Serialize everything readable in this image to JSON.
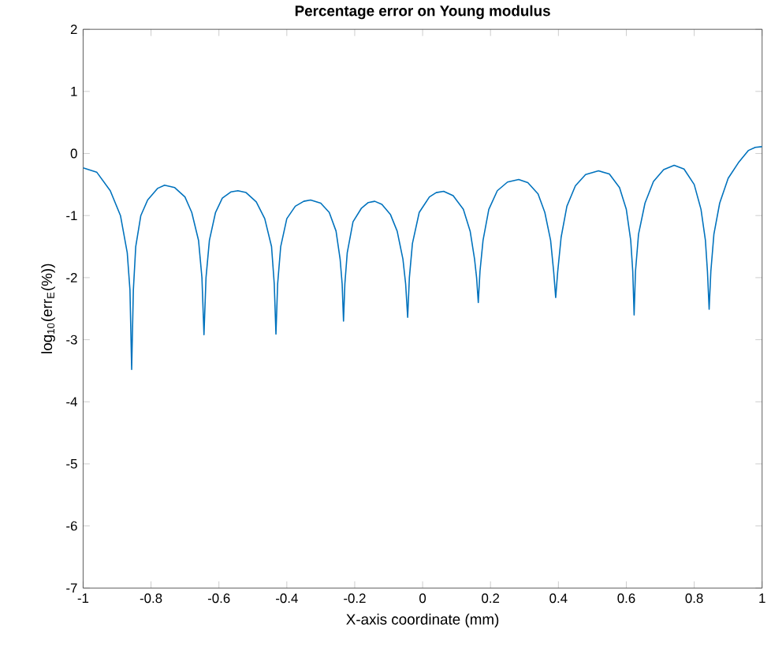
{
  "chart_data": {
    "type": "line",
    "title": "**Percentage error on Young modulus**",
    "xlabel": "X-axis coordinate (mm)",
    "ylabel": "log$_{10}$(err$_{E}$(%))",
    "xlim": [
      -1,
      1
    ],
    "ylim": [
      -7,
      2
    ],
    "xticks": [
      -1,
      -0.8,
      -0.6,
      -0.4,
      -0.2,
      0,
      0.2,
      0.4,
      0.6,
      0.8,
      1
    ],
    "yticks": [
      -7,
      -6,
      -5,
      -4,
      -3,
      -2,
      -1,
      0,
      1,
      2
    ],
    "series": [
      {
        "color": "#0072bd",
        "x": [
          -1,
          -0.96,
          -0.92,
          -0.89,
          -0.87,
          -0.862,
          -0.857,
          -0.852,
          -0.845,
          -0.83,
          -0.81,
          -0.78,
          -0.76,
          -0.73,
          -0.7,
          -0.68,
          -0.66,
          -0.65,
          -0.644,
          -0.638,
          -0.628,
          -0.61,
          -0.59,
          -0.565,
          -0.544,
          -0.52,
          -0.49,
          -0.465,
          -0.445,
          -0.437,
          -0.432,
          -0.427,
          -0.418,
          -0.4,
          -0.375,
          -0.35,
          -0.33,
          -0.3,
          -0.275,
          -0.255,
          -0.243,
          -0.237,
          -0.233,
          -0.229,
          -0.222,
          -0.205,
          -0.18,
          -0.16,
          -0.141,
          -0.12,
          -0.095,
          -0.075,
          -0.058,
          -0.05,
          -0.044,
          -0.039,
          -0.03,
          -0.01,
          0.02,
          0.04,
          0.062,
          0.09,
          0.12,
          0.14,
          0.153,
          0.159,
          0.164,
          0.169,
          0.178,
          0.195,
          0.22,
          0.25,
          0.283,
          0.31,
          0.34,
          0.36,
          0.377,
          0.386,
          0.392,
          0.398,
          0.408,
          0.425,
          0.45,
          0.48,
          0.518,
          0.55,
          0.58,
          0.6,
          0.613,
          0.619,
          0.623,
          0.627,
          0.636,
          0.655,
          0.68,
          0.71,
          0.741,
          0.77,
          0.8,
          0.82,
          0.833,
          0.839,
          0.844,
          0.849,
          0.858,
          0.875,
          0.9,
          0.93,
          0.96,
          0.98,
          1.0
        ],
        "values": [
          -0.23,
          -0.3,
          -0.6,
          -1.0,
          -1.6,
          -2.2,
          -3.48,
          -2.2,
          -1.5,
          -1.0,
          -0.75,
          -0.56,
          -0.51,
          -0.55,
          -0.7,
          -0.95,
          -1.4,
          -2.0,
          -2.92,
          -2.0,
          -1.4,
          -0.95,
          -0.72,
          -0.62,
          -0.6,
          -0.63,
          -0.78,
          -1.05,
          -1.5,
          -2.1,
          -2.91,
          -2.1,
          -1.5,
          -1.05,
          -0.85,
          -0.77,
          -0.75,
          -0.8,
          -0.95,
          -1.25,
          -1.7,
          -2.1,
          -2.7,
          -2.1,
          -1.6,
          -1.1,
          -0.88,
          -0.79,
          -0.77,
          -0.82,
          -0.98,
          -1.25,
          -1.7,
          -2.1,
          -2.64,
          -2.0,
          -1.45,
          -0.95,
          -0.7,
          -0.63,
          -0.61,
          -0.68,
          -0.9,
          -1.25,
          -1.7,
          -2.0,
          -2.4,
          -1.9,
          -1.4,
          -0.9,
          -0.6,
          -0.46,
          -0.42,
          -0.47,
          -0.65,
          -0.95,
          -1.4,
          -1.9,
          -2.32,
          -1.9,
          -1.35,
          -0.85,
          -0.52,
          -0.34,
          -0.28,
          -0.33,
          -0.55,
          -0.9,
          -1.4,
          -1.9,
          -2.6,
          -1.9,
          -1.3,
          -0.8,
          -0.45,
          -0.26,
          -0.19,
          -0.25,
          -0.5,
          -0.9,
          -1.4,
          -1.9,
          -2.51,
          -1.9,
          -1.3,
          -0.8,
          -0.4,
          -0.15,
          0.05,
          0.1,
          0.11
        ]
      }
    ]
  }
}
